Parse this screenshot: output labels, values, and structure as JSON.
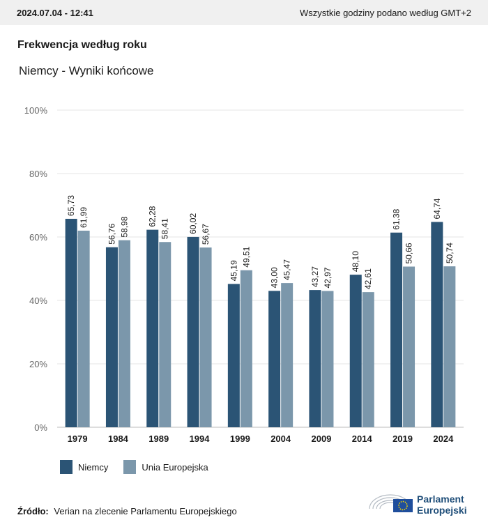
{
  "header": {
    "timestamp": "2024.07.04 - 12:41",
    "timezone_note": "Wszystkie godziny podano według GMT+2"
  },
  "title": "Frekwencja według roku",
  "subtitle": "Niemcy - Wyniki końcowe",
  "source": {
    "label": "Źródło:",
    "text": "Verian na zlecenie Parlamentu Europejskiego"
  },
  "logo": {
    "line1": "Parlament",
    "line2": "Europejski"
  },
  "colors": {
    "germany": "#2b5475",
    "eu": "#7b97ab",
    "grid": "#e6e6e6"
  },
  "chart_data": {
    "type": "bar",
    "title": "Frekwencja według roku",
    "categories": [
      "1979",
      "1984",
      "1989",
      "1994",
      "1999",
      "2004",
      "2009",
      "2014",
      "2019",
      "2024"
    ],
    "series": [
      {
        "name": "Niemcy",
        "values": [
          65.73,
          56.76,
          62.28,
          60.02,
          45.19,
          43.0,
          43.27,
          48.1,
          61.38,
          64.74
        ]
      },
      {
        "name": "Unia Europejska",
        "values": [
          61.99,
          58.98,
          58.41,
          56.67,
          49.51,
          45.47,
          42.97,
          42.61,
          50.66,
          50.74
        ]
      }
    ],
    "ylim": [
      0,
      100
    ],
    "yticks": [
      "0%",
      "20%",
      "40%",
      "60%",
      "80%",
      "100%"
    ],
    "ytick_values": [
      0,
      20,
      40,
      60,
      80,
      100
    ],
    "grid": true,
    "legend_position": "bottom-left"
  }
}
